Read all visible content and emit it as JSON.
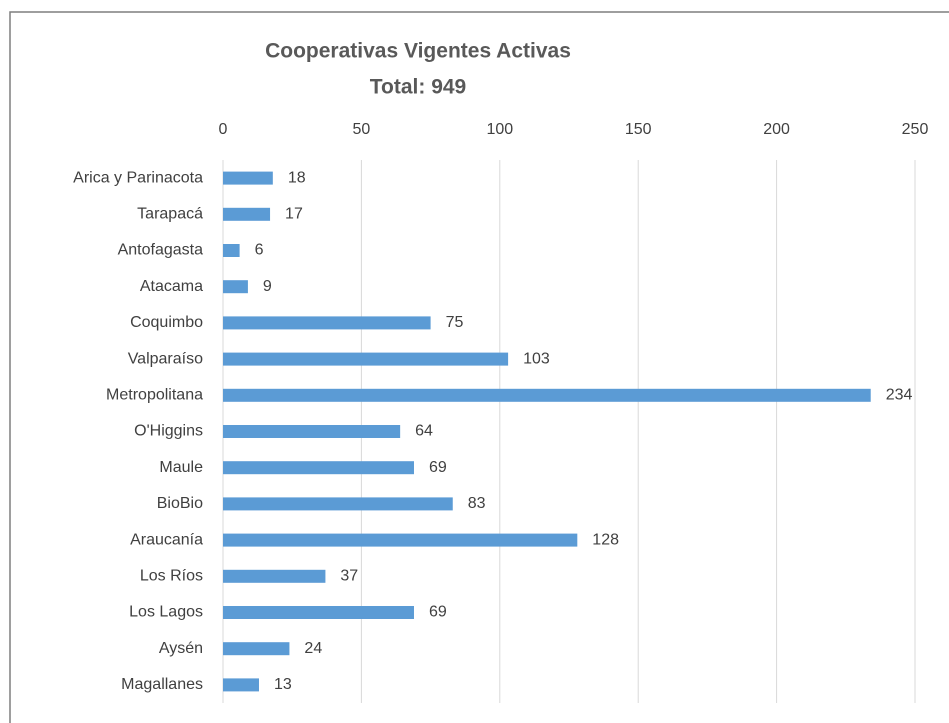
{
  "chart_data": {
    "type": "barh",
    "title": "Cooperativas Vigentes Activas",
    "subtitle": "Total: 949",
    "categories": [
      "Arica y Parinacota",
      "Tarapacá",
      "Antofagasta",
      "Atacama",
      "Coquimbo",
      "Valparaíso",
      "Metropolitana",
      "O'Higgins",
      "Maule",
      "BioBio",
      "Araucanía",
      "Los Ríos",
      "Los Lagos",
      "Aysén",
      "Magallanes"
    ],
    "values": [
      18,
      17,
      6,
      9,
      75,
      103,
      234,
      64,
      69,
      83,
      128,
      37,
      69,
      24,
      13
    ],
    "color": "#5b9bd5",
    "xlim": [
      0,
      250
    ],
    "xticks": [
      0,
      50,
      100,
      150,
      200,
      250
    ],
    "grid": true
  }
}
